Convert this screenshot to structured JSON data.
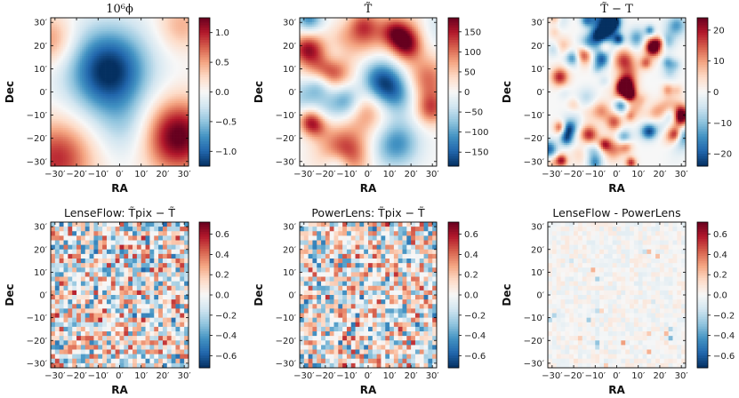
{
  "figure": {
    "type": "heatmap_grid",
    "rows": 2,
    "cols": 3
  },
  "chart_data": [
    {
      "type": "heatmap",
      "id": "phi",
      "title": "10⁶ϕ",
      "title_style": "serif",
      "xlabel": "RA",
      "ylabel": "Dec",
      "x_ticks": [
        "−30′",
        "−20′",
        "−10′",
        "0′",
        "10′",
        "20′",
        "30′"
      ],
      "y_ticks": [
        "30′",
        "20′",
        "10′",
        "0′",
        "−10′",
        "−20′",
        "−30′"
      ],
      "xlim": [
        -32,
        32
      ],
      "ylim": [
        -32,
        32
      ],
      "field": "smooth",
      "colorbar": {
        "vmin": -1.25,
        "vmax": 1.25,
        "ticks": [
          1.0,
          0.5,
          0.0,
          -0.5,
          -1.0
        ],
        "tick_labels": [
          "1.0",
          "0.5",
          "0.0",
          "−0.5",
          "−1.0"
        ]
      }
    },
    {
      "type": "heatmap",
      "id": "Ttilde",
      "title": "T̃",
      "title_style": "serif",
      "xlabel": "RA",
      "ylabel": "Dec",
      "x_ticks": [
        "−30′",
        "−20′",
        "−10′",
        "0′",
        "10′",
        "20′",
        "30′"
      ],
      "y_ticks": [
        "30′",
        "20′",
        "10′",
        "0′",
        "−10′",
        "−20′",
        "−30′"
      ],
      "xlim": [
        -32,
        32
      ],
      "ylim": [
        -32,
        32
      ],
      "field": "medium",
      "colorbar": {
        "vmin": -185,
        "vmax": 185,
        "ticks": [
          150,
          100,
          50,
          0,
          -50,
          -100,
          -150
        ],
        "tick_labels": [
          "150",
          "100",
          "50",
          "0",
          "−50",
          "−100",
          "−150"
        ]
      }
    },
    {
      "type": "heatmap",
      "id": "Ttilde_minus_T",
      "title": "T̃ − T",
      "title_style": "serif",
      "xlabel": "RA",
      "ylabel": "Dec",
      "x_ticks": [
        "−30′",
        "−20′",
        "−10′",
        "0′",
        "10′",
        "20′",
        "30′"
      ],
      "y_ticks": [
        "30′",
        "20′",
        "10′",
        "0′",
        "−10′",
        "−20′",
        "−30′"
      ],
      "xlim": [
        -32,
        32
      ],
      "ylim": [
        -32,
        32
      ],
      "field": "fine",
      "colorbar": {
        "vmin": -24,
        "vmax": 24,
        "ticks": [
          20,
          10,
          0,
          -10,
          -20
        ],
        "tick_labels": [
          "20",
          "10",
          "0",
          "−10",
          "−20"
        ]
      }
    },
    {
      "type": "heatmap",
      "id": "lenseflow_residual",
      "title": "LenseFlow: T̃pix − T̃",
      "title_style": "sans",
      "xlabel": "RA",
      "ylabel": "Dec",
      "x_ticks": [
        "−30′",
        "−20′",
        "−10′",
        "0′",
        "10′",
        "20′",
        "30′"
      ],
      "y_ticks": [
        "30′",
        "20′",
        "10′",
        "0′",
        "−10′",
        "−20′",
        "−30′"
      ],
      "xlim": [
        -32,
        32
      ],
      "ylim": [
        -32,
        32
      ],
      "field": "pixel",
      "colorbar": {
        "vmin": -0.72,
        "vmax": 0.72,
        "ticks": [
          0.6,
          0.4,
          0.2,
          0.0,
          -0.2,
          -0.4,
          -0.6
        ],
        "tick_labels": [
          "0.6",
          "0.4",
          "0.2",
          "0.0",
          "−0.2",
          "−0.4",
          "−0.6"
        ]
      }
    },
    {
      "type": "heatmap",
      "id": "powerlens_residual",
      "title": "PowerLens: T̃pix − T̃",
      "title_style": "sans",
      "xlabel": "RA",
      "ylabel": "Dec",
      "x_ticks": [
        "−30′",
        "−20′",
        "−10′",
        "0′",
        "10′",
        "20′",
        "30′"
      ],
      "y_ticks": [
        "30′",
        "20′",
        "10′",
        "0′",
        "−10′",
        "−20′",
        "−30′"
      ],
      "xlim": [
        -32,
        32
      ],
      "ylim": [
        -32,
        32
      ],
      "field": "pixel",
      "colorbar": {
        "vmin": -0.72,
        "vmax": 0.72,
        "ticks": [
          0.6,
          0.4,
          0.2,
          0.0,
          -0.2,
          -0.4,
          -0.6
        ],
        "tick_labels": [
          "0.6",
          "0.4",
          "0.2",
          "0.0",
          "−0.2",
          "−0.4",
          "−0.6"
        ]
      }
    },
    {
      "type": "heatmap",
      "id": "difference",
      "title": "LenseFlow - PowerLens",
      "title_style": "sans",
      "xlabel": "RA",
      "ylabel": "Dec",
      "x_ticks": [
        "−30′",
        "−20′",
        "−10′",
        "0′",
        "10′",
        "20′",
        "30′"
      ],
      "y_ticks": [
        "30′",
        "20′",
        "10′",
        "0′",
        "−10′",
        "−20′",
        "−30′"
      ],
      "xlim": [
        -32,
        32
      ],
      "ylim": [
        -32,
        32
      ],
      "field": "faint",
      "colorbar": {
        "vmin": -0.72,
        "vmax": 0.72,
        "ticks": [
          0.6,
          0.4,
          0.2,
          0.0,
          -0.2,
          -0.4,
          -0.6
        ],
        "tick_labels": [
          "0.6",
          "0.4",
          "0.2",
          "0.0",
          "−0.2",
          "−0.4",
          "−0.6"
        ]
      }
    }
  ],
  "colors": {
    "red": "#67001f",
    "blue": "#053061",
    "white": "#f7f7f7"
  }
}
